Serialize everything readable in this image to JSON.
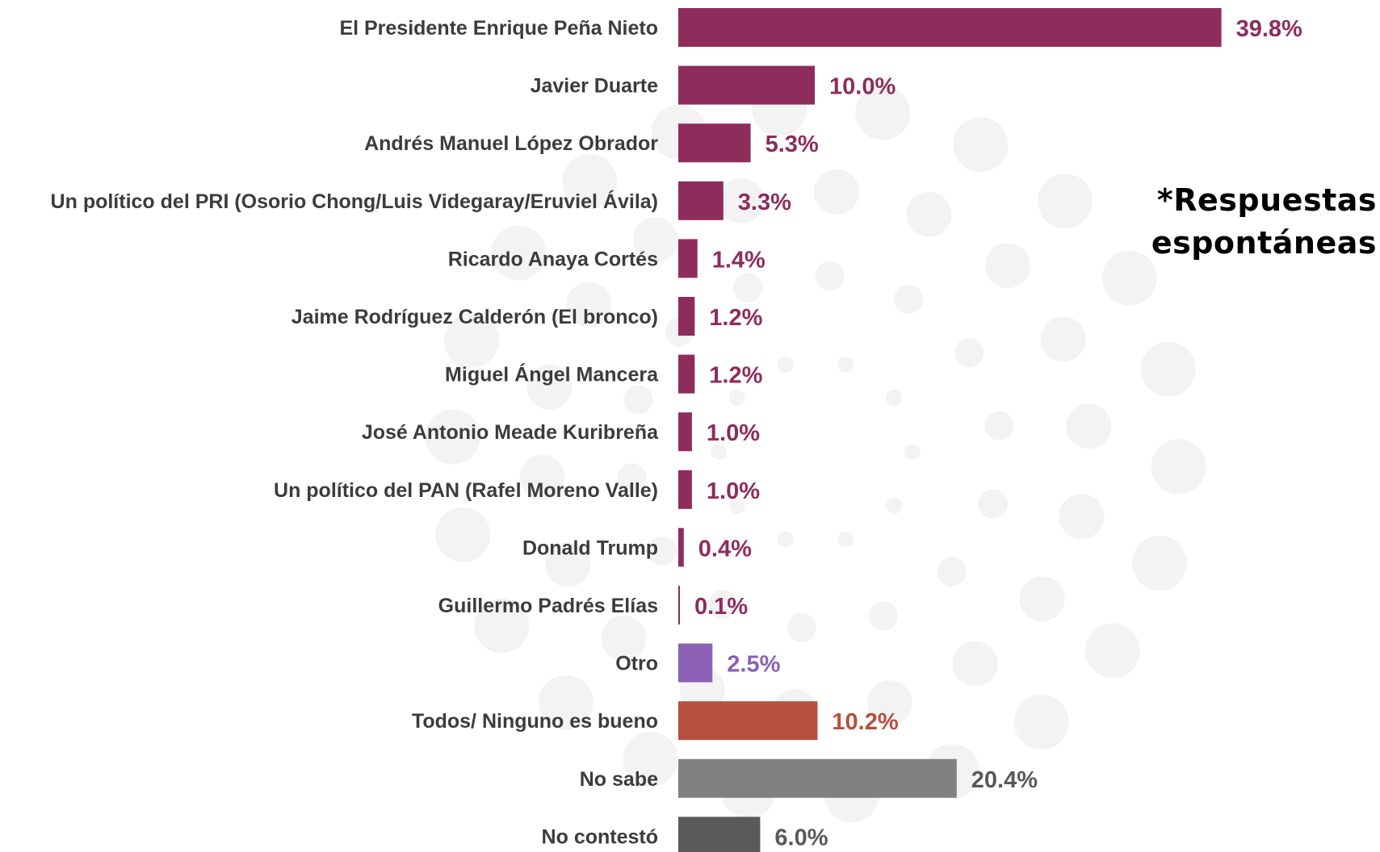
{
  "chart_data": {
    "type": "bar",
    "orientation": "horizontal",
    "categories": [
      "El Presidente Enrique Peña Nieto",
      "Javier Duarte",
      "Andrés Manuel López Obrador",
      "Un político del PRI (Osorio Chong/Luis Videgaray/Eruviel Ávila)",
      "Ricardo Anaya Cortés",
      "Jaime Rodríguez Calderón (El bronco)",
      "Miguel Ángel Mancera",
      "José Antonio Meade Kuribreña",
      "Un político del PAN (Rafel Moreno Valle)",
      "Donald Trump",
      "Guillermo Padrés Elías",
      "Otro",
      "Todos/ Ninguno es bueno",
      "No sabe",
      "No contestó"
    ],
    "values": [
      39.8,
      10.0,
      5.3,
      3.3,
      1.4,
      1.2,
      1.2,
      1.0,
      1.0,
      0.4,
      0.1,
      2.5,
      10.2,
      20.4,
      6.0
    ],
    "value_labels": [
      "39.8%",
      "10.0%",
      "5.3%",
      "3.3%",
      "1.4%",
      "1.2%",
      "1.2%",
      "1.0%",
      "1.0%",
      "0.4%",
      "0.1%",
      "2.5%",
      "10.2%",
      "20.4%",
      "6.0%"
    ],
    "colors": [
      "#8e2c5c",
      "#8e2c5c",
      "#8e2c5c",
      "#8e2c5c",
      "#8e2c5c",
      "#8e2c5c",
      "#8e2c5c",
      "#8e2c5c",
      "#8e2c5c",
      "#8e2c5c",
      "#8e2c5c",
      "#8b60b5",
      "#b5513d",
      "#808080",
      "#595959"
    ],
    "label_colors": [
      "#8e2c5c",
      "#8e2c5c",
      "#8e2c5c",
      "#8e2c5c",
      "#8e2c5c",
      "#8e2c5c",
      "#8e2c5c",
      "#8e2c5c",
      "#8e2c5c",
      "#8e2c5c",
      "#8e2c5c",
      "#8b60b5",
      "#b5513d",
      "#595959",
      "#595959"
    ],
    "xlim": [
      0,
      40
    ],
    "grid": false,
    "legend": "none",
    "title": "",
    "xlabel": "",
    "ylabel": ""
  },
  "note": {
    "line1": "*Respuestas",
    "line2": "espontáneas"
  }
}
